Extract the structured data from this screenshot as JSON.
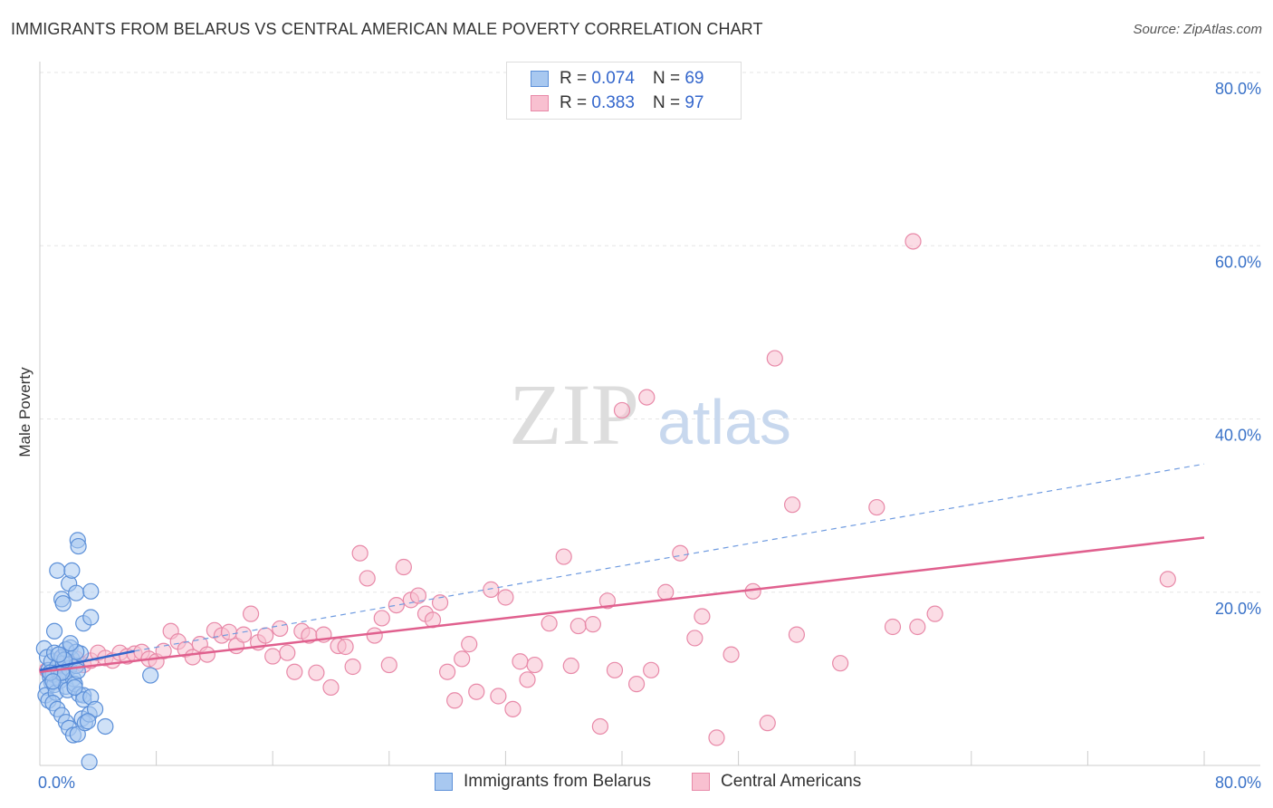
{
  "header": {
    "title": "IMMIGRANTS FROM BELARUS VS CENTRAL AMERICAN MALE POVERTY CORRELATION CHART",
    "source": "Source: ZipAtlas.com"
  },
  "watermark": {
    "zip": "ZIP",
    "atlas": "atlas"
  },
  "legend": {
    "r_label": "R =",
    "n_label": "N =",
    "items": [
      {
        "r_value": "0.074",
        "n_value": "69"
      },
      {
        "r_value": "0.383",
        "n_value": "97"
      }
    ]
  },
  "colors": {
    "blue_fill": "#a8c8f0",
    "blue_stroke": "#5b8fd8",
    "blue_line": "#3366cc",
    "pink_fill": "#f8c0d0",
    "pink_stroke": "#e889a8",
    "pink_line": "#e0608e",
    "tick_text": "#3a72c8",
    "grid": "#e5e5e5"
  },
  "chart_data": {
    "type": "scatter",
    "title": "IMMIGRANTS FROM BELARUS VS CENTRAL AMERICAN MALE POVERTY CORRELATION CHART",
    "xlabel": "",
    "ylabel": "Male Poverty",
    "xlim": [
      0,
      80
    ],
    "ylim": [
      0,
      80
    ],
    "x_tick_labels": [
      "0.0%",
      "80.0%"
    ],
    "y_tick_values": [
      20,
      40,
      60,
      80
    ],
    "y_tick_labels": [
      "20.0%",
      "40.0%",
      "60.0%",
      "80.0%"
    ],
    "grid": true,
    "legend_position": "top-center",
    "series": [
      {
        "name": "Immigrants from Belarus",
        "color": "#a8c8f0",
        "r": 0.074,
        "n": 69,
        "trend": {
          "x": [
            0,
            6.5
          ],
          "y": [
            11.0,
            13.2
          ]
        },
        "trend_extension": {
          "x": [
            6.5,
            80
          ],
          "y": [
            13.2,
            34.8
          ]
        },
        "points": [
          [
            0.3,
            13.5
          ],
          [
            0.5,
            12.5
          ],
          [
            0.6,
            11.0
          ],
          [
            0.7,
            10.2
          ],
          [
            0.8,
            9.6
          ],
          [
            0.5,
            9.0
          ],
          [
            0.4,
            8.1
          ],
          [
            0.6,
            7.5
          ],
          [
            0.8,
            12.0
          ],
          [
            0.9,
            10.5
          ],
          [
            1.0,
            9.3
          ],
          [
            1.1,
            8.4
          ],
          [
            1.2,
            11.4
          ],
          [
            1.0,
            13.0
          ],
          [
            1.3,
            10.8
          ],
          [
            1.4,
            9.8
          ],
          [
            1.5,
            12.5
          ],
          [
            1.6,
            11.8
          ],
          [
            1.7,
            10.4
          ],
          [
            1.8,
            9.1
          ],
          [
            1.9,
            8.7
          ],
          [
            2.0,
            11.2
          ],
          [
            2.1,
            13.6
          ],
          [
            2.2,
            12.3
          ],
          [
            2.3,
            10.0
          ],
          [
            2.4,
            9.4
          ],
          [
            2.5,
            11.5
          ],
          [
            2.6,
            10.9
          ],
          [
            2.7,
            8.2
          ],
          [
            2.8,
            12.9
          ],
          [
            0.9,
            7.2
          ],
          [
            1.2,
            6.5
          ],
          [
            1.5,
            5.8
          ],
          [
            1.8,
            5.0
          ],
          [
            2.0,
            4.3
          ],
          [
            2.3,
            3.5
          ],
          [
            2.6,
            3.6
          ],
          [
            2.9,
            5.4
          ],
          [
            3.1,
            4.9
          ],
          [
            3.4,
            5.9
          ],
          [
            1.0,
            15.5
          ],
          [
            1.2,
            22.5
          ],
          [
            1.5,
            19.2
          ],
          [
            1.6,
            18.7
          ],
          [
            2.0,
            21.0
          ],
          [
            2.2,
            22.5
          ],
          [
            2.5,
            19.9
          ],
          [
            2.6,
            26.0
          ],
          [
            2.65,
            25.3
          ],
          [
            3.0,
            16.4
          ],
          [
            3.5,
            17.1
          ],
          [
            3.5,
            20.1
          ],
          [
            1.8,
            13.4
          ],
          [
            2.5,
            13.1
          ],
          [
            2.1,
            14.1
          ],
          [
            1.5,
            10.7
          ],
          [
            1.7,
            12.2
          ],
          [
            0.7,
            10.7
          ],
          [
            3.0,
            8.1
          ],
          [
            3.0,
            7.6
          ],
          [
            3.5,
            7.9
          ],
          [
            3.8,
            6.5
          ],
          [
            3.3,
            5.1
          ],
          [
            4.5,
            4.5
          ],
          [
            7.6,
            10.4
          ],
          [
            3.4,
            0.4
          ],
          [
            0.9,
            9.7
          ],
          [
            1.3,
            12.8
          ],
          [
            2.4,
            9.0
          ]
        ]
      },
      {
        "name": "Central Americans",
        "color": "#f8c0d0",
        "r": 0.383,
        "n": 97,
        "trend": {
          "x": [
            0,
            80
          ],
          "y": [
            10.8,
            26.3
          ]
        },
        "points": [
          [
            0.5,
            11.0
          ],
          [
            1.0,
            10.4
          ],
          [
            1.5,
            12.4
          ],
          [
            2.0,
            11.9
          ],
          [
            2.5,
            12.3
          ],
          [
            3.0,
            11.6
          ],
          [
            3.5,
            12.1
          ],
          [
            4.0,
            13.0
          ],
          [
            4.5,
            12.4
          ],
          [
            5.0,
            12.1
          ],
          [
            5.5,
            13.0
          ],
          [
            6.0,
            12.6
          ],
          [
            6.5,
            12.9
          ],
          [
            7.0,
            13.1
          ],
          [
            7.5,
            12.3
          ],
          [
            8.0,
            12.0
          ],
          [
            8.5,
            13.2
          ],
          [
            9.0,
            15.5
          ],
          [
            9.5,
            14.3
          ],
          [
            10.0,
            13.4
          ],
          [
            10.5,
            12.5
          ],
          [
            11.0,
            14.0
          ],
          [
            11.5,
            12.8
          ],
          [
            12.0,
            15.6
          ],
          [
            12.5,
            15.0
          ],
          [
            13.0,
            15.4
          ],
          [
            13.5,
            13.8
          ],
          [
            14.0,
            15.1
          ],
          [
            14.5,
            17.5
          ],
          [
            15.0,
            14.2
          ],
          [
            15.5,
            15.0
          ],
          [
            16.0,
            12.6
          ],
          [
            16.5,
            15.8
          ],
          [
            17.0,
            13.0
          ],
          [
            17.5,
            10.8
          ],
          [
            18.0,
            15.5
          ],
          [
            18.5,
            15.0
          ],
          [
            19.0,
            10.7
          ],
          [
            19.5,
            15.1
          ],
          [
            20.0,
            9.0
          ],
          [
            20.5,
            13.8
          ],
          [
            21.0,
            13.7
          ],
          [
            21.5,
            11.4
          ],
          [
            22.0,
            24.5
          ],
          [
            22.5,
            21.6
          ],
          [
            23.0,
            15.0
          ],
          [
            23.5,
            17.0
          ],
          [
            24.0,
            11.6
          ],
          [
            24.5,
            18.5
          ],
          [
            25.0,
            22.9
          ],
          [
            25.5,
            19.1
          ],
          [
            26.0,
            19.6
          ],
          [
            26.5,
            17.5
          ],
          [
            27.0,
            16.8
          ],
          [
            27.5,
            18.8
          ],
          [
            28.0,
            10.8
          ],
          [
            28.5,
            7.5
          ],
          [
            29.0,
            12.3
          ],
          [
            29.5,
            14.0
          ],
          [
            30.0,
            8.5
          ],
          [
            31.0,
            20.3
          ],
          [
            31.5,
            8.0
          ],
          [
            32.0,
            19.4
          ],
          [
            32.5,
            6.5
          ],
          [
            33.0,
            12.0
          ],
          [
            33.5,
            9.9
          ],
          [
            34.0,
            11.6
          ],
          [
            35.0,
            16.4
          ],
          [
            36.0,
            24.1
          ],
          [
            36.5,
            11.5
          ],
          [
            37.0,
            16.1
          ],
          [
            38.0,
            16.3
          ],
          [
            38.5,
            4.5
          ],
          [
            39.0,
            19.0
          ],
          [
            39.5,
            11.0
          ],
          [
            40.0,
            41.0
          ],
          [
            41.0,
            9.4
          ],
          [
            41.7,
            42.5
          ],
          [
            42.0,
            11.0
          ],
          [
            43.0,
            20.0
          ],
          [
            44.0,
            24.5
          ],
          [
            45.0,
            14.7
          ],
          [
            45.5,
            17.2
          ],
          [
            46.5,
            3.2
          ],
          [
            47.5,
            12.8
          ],
          [
            49.0,
            20.1
          ],
          [
            50.0,
            4.9
          ],
          [
            50.5,
            47.0
          ],
          [
            51.7,
            30.1
          ],
          [
            52.0,
            15.1
          ],
          [
            55.0,
            11.8
          ],
          [
            57.5,
            29.8
          ],
          [
            60.0,
            60.5
          ],
          [
            60.3,
            16.0
          ],
          [
            61.5,
            17.5
          ],
          [
            77.5,
            21.5
          ],
          [
            58.6,
            16.0
          ]
        ]
      }
    ]
  },
  "bottom_legend": {
    "items": [
      {
        "label": "Immigrants from Belarus"
      },
      {
        "label": "Central Americans"
      }
    ]
  }
}
